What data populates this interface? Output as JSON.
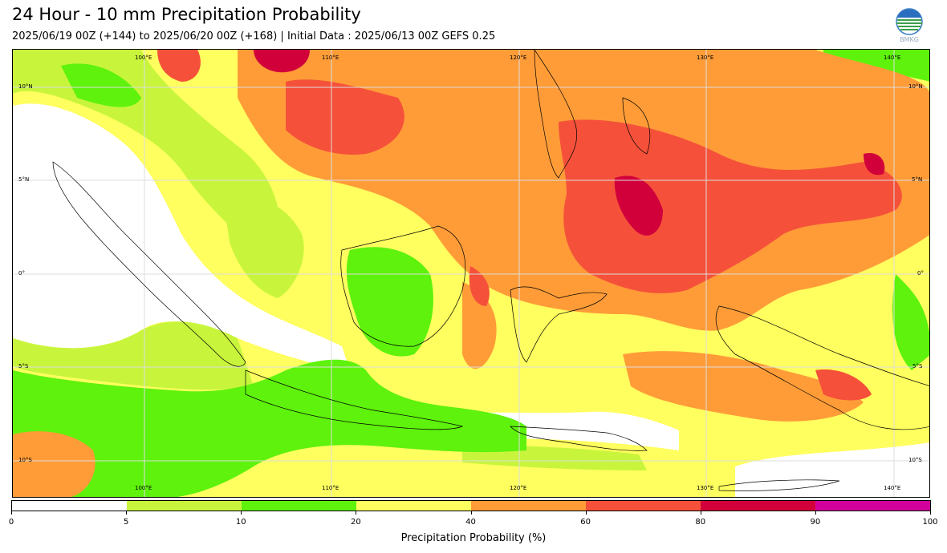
{
  "header": {
    "title": "24 Hour - 10 mm Precipitation Probability",
    "subtitle": "2025/06/19 00Z (+144) to 2025/06/20 00Z (+168) | Initial Data : 2025/06/13 00Z GEFS 0.25"
  },
  "logo": {
    "icon": "bmkg-logo-icon",
    "text": "BMKG"
  },
  "map": {
    "longitude_labels": [
      "100°E",
      "110°E",
      "120°E",
      "130°E",
      "140°E"
    ],
    "latitude_labels": [
      "10°N",
      "5°N",
      "0°",
      "5°S",
      "10°S"
    ],
    "colors": {
      "p0_5": "#ffffff",
      "p5_10": "#c8f53c",
      "p10_20": "#5ef20c",
      "p20_40": "#ffff5f",
      "p40_60": "#ff9c38",
      "p60_80": "#f5513a",
      "p80_90": "#d2003a",
      "p90_100": "#d2009b"
    }
  },
  "colorbar": {
    "title": "Precipitation Probability (%)",
    "ticks": [
      "0",
      "5",
      "10",
      "20",
      "40",
      "60",
      "80",
      "90",
      "100"
    ],
    "segments": [
      {
        "from": 0,
        "to": 5,
        "color": "#ffffff"
      },
      {
        "from": 5,
        "to": 10,
        "color": "#c8f53c"
      },
      {
        "from": 10,
        "to": 20,
        "color": "#5ef20c"
      },
      {
        "from": 20,
        "to": 40,
        "color": "#ffff5f"
      },
      {
        "from": 40,
        "to": 60,
        "color": "#ff9c38"
      },
      {
        "from": 60,
        "to": 80,
        "color": "#f5513a"
      },
      {
        "from": 80,
        "to": 90,
        "color": "#d2003a"
      },
      {
        "from": 90,
        "to": 100,
        "color": "#d2009b"
      }
    ]
  }
}
